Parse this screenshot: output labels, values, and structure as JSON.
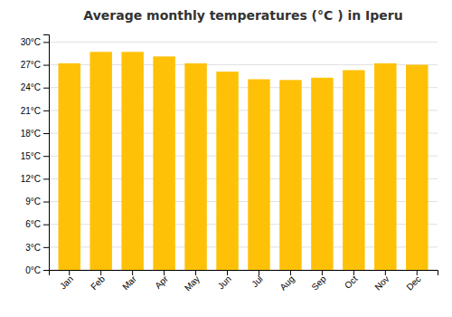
{
  "chart_data": {
    "type": "bar",
    "title": "Average monthly temperatures (°C ) in Iperu",
    "categories": [
      "Jan",
      "Feb",
      "Mar",
      "Apr",
      "May",
      "Jun",
      "Jul",
      "Aug",
      "Sep",
      "Oct",
      "Nov",
      "Dec"
    ],
    "values": [
      27.2,
      28.7,
      28.7,
      28.1,
      27.2,
      26.1,
      25.1,
      25.0,
      25.3,
      26.3,
      27.2,
      27.0
    ],
    "color": "#FFC107",
    "ylim": [
      0,
      31
    ],
    "yticks": [
      {
        "value": 0,
        "label": "0°C"
      },
      {
        "value": 3,
        "label": "3°C"
      },
      {
        "value": 6,
        "label": "6°C"
      },
      {
        "value": 9,
        "label": "9°C"
      },
      {
        "value": 12,
        "label": "12°C"
      },
      {
        "value": 15,
        "label": "15°C"
      },
      {
        "value": 18,
        "label": "18°C"
      },
      {
        "value": 21,
        "label": "21°C"
      },
      {
        "value": 24,
        "label": "24°C"
      },
      {
        "value": 27,
        "label": "27°C"
      },
      {
        "value": 30,
        "label": "30°C"
      }
    ],
    "grid": true
  }
}
